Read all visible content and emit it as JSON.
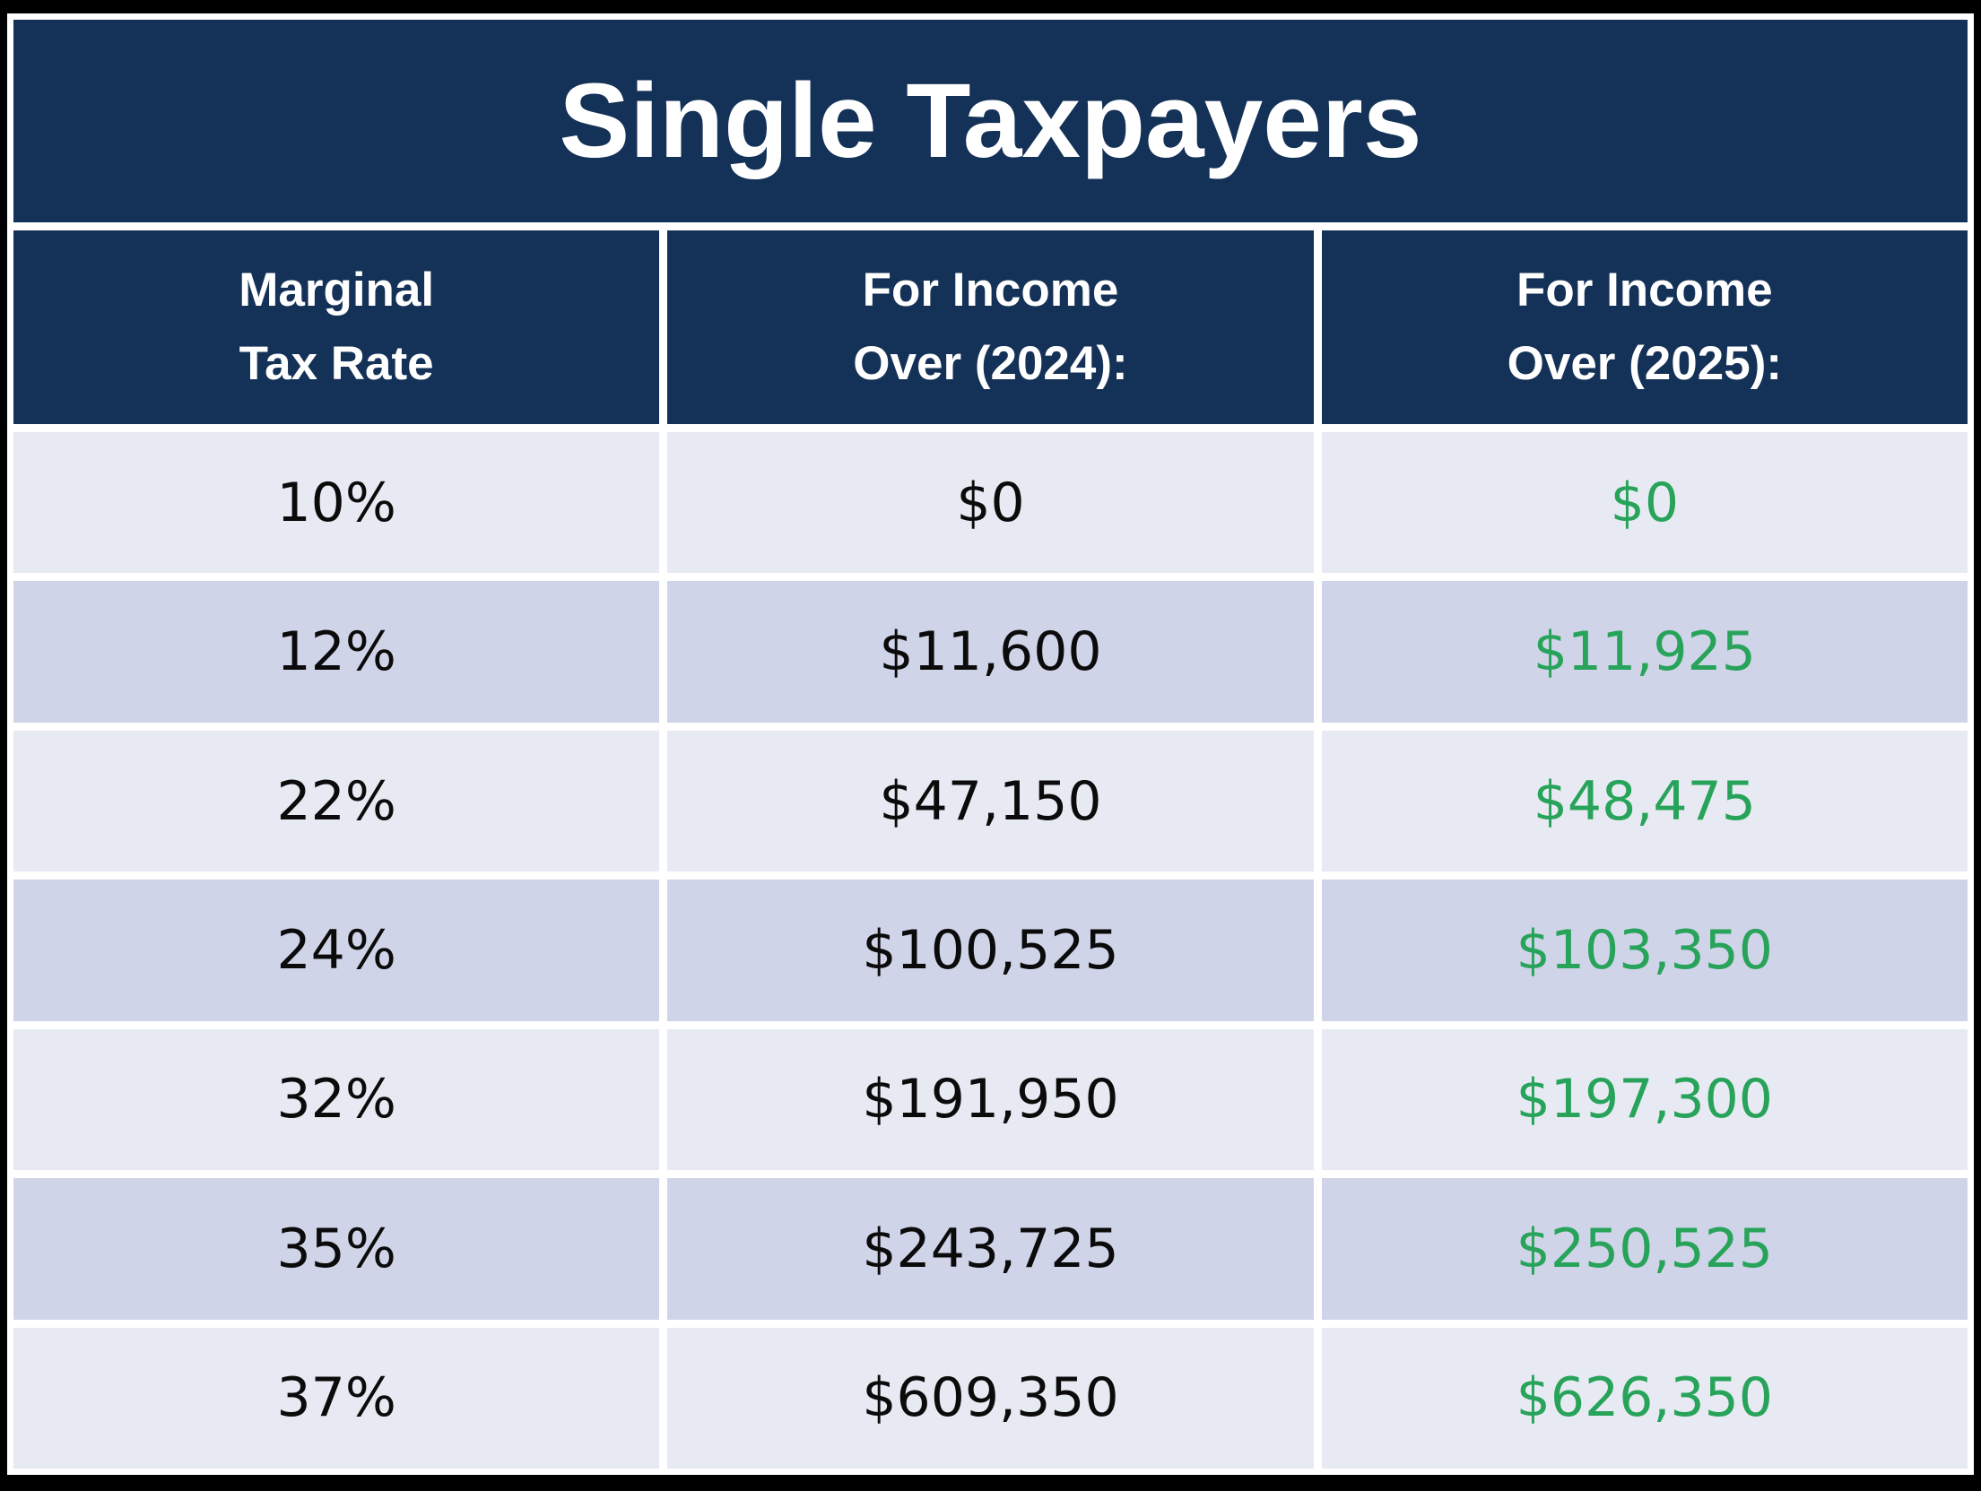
{
  "title": "Single Taxpayers",
  "colors": {
    "navy": "#143157",
    "row-light": "#e8eaf3",
    "row-dark": "#d0d4e8",
    "green": "#27a35a",
    "frame": "#000000",
    "gap": "#ffffff",
    "header-text": "#ffffff",
    "value-text": "#0b0b0b"
  },
  "chart_data": {
    "type": "table",
    "title": "Single Taxpayers",
    "columns": [
      "Marginal\nTax Rate",
      "For Income\nOver (2024):",
      "For Income\nOver (2025):"
    ],
    "rows": [
      [
        "10%",
        "$0",
        "$0"
      ],
      [
        "12%",
        "$11,600",
        "$11,925"
      ],
      [
        "22%",
        "$47,150",
        "$48,475"
      ],
      [
        "24%",
        "$100,525",
        "$103,350"
      ],
      [
        "32%",
        "$191,950",
        "$197,300"
      ],
      [
        "35%",
        "$243,725",
        "$250,525"
      ],
      [
        "37%",
        "$609,350",
        "$626,350"
      ]
    ],
    "notes": "2025 column values rendered in green; rows alternate light/dark lavender; header and title on navy"
  }
}
